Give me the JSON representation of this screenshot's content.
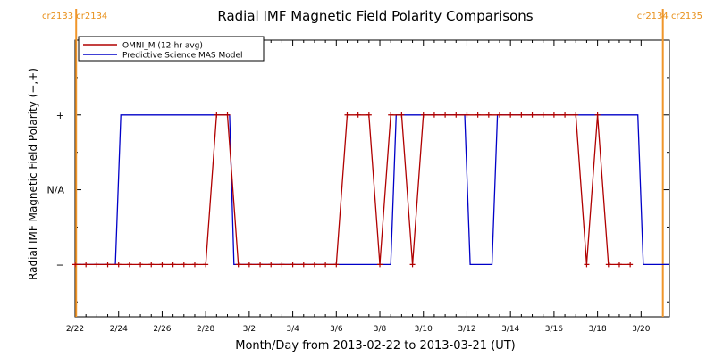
{
  "chart_data": {
    "type": "line",
    "title": "Radial IMF Magnetic Field Polarity Comparisons",
    "xlabel": "Month/Day from 2013-02-22 to 2013-03-21 (UT)",
    "ylabel": "Radial IMF Magnetic Field Polarity (−,+)",
    "xlim": [
      0,
      27.3
    ],
    "ylim": [
      -1.7,
      2.0
    ],
    "yticks": [
      {
        "value": 1,
        "label": "+"
      },
      {
        "value": 0,
        "label": "N/A"
      },
      {
        "value": -1,
        "label": "−"
      }
    ],
    "yminor": [
      -1.5,
      -0.5,
      0.5,
      1.5
    ],
    "xticks": [
      {
        "value": 0,
        "label": "2/22"
      },
      {
        "value": 2,
        "label": "2/24"
      },
      {
        "value": 4,
        "label": "2/26"
      },
      {
        "value": 6,
        "label": "2/28"
      },
      {
        "value": 8,
        "label": "3/2"
      },
      {
        "value": 10,
        "label": "3/4"
      },
      {
        "value": 12,
        "label": "3/6"
      },
      {
        "value": 14,
        "label": "3/8"
      },
      {
        "value": 16,
        "label": "3/10"
      },
      {
        "value": 18,
        "label": "3/12"
      },
      {
        "value": 20,
        "label": "3/14"
      },
      {
        "value": 22,
        "label": "3/16"
      },
      {
        "value": 24,
        "label": "3/18"
      },
      {
        "value": 26,
        "label": "3/20"
      }
    ],
    "legend": {
      "placement": "top-left"
    },
    "series": [
      {
        "name": "OMNI_M (12-hr avg)",
        "color": "#b00000",
        "markers": true,
        "points": [
          [
            0,
            -1
          ],
          [
            0.5,
            -1
          ],
          [
            1,
            -1
          ],
          [
            1.5,
            -1
          ],
          [
            2,
            -1
          ],
          [
            2.5,
            -1
          ],
          [
            3,
            -1
          ],
          [
            3.5,
            -1
          ],
          [
            4,
            -1
          ],
          [
            4.5,
            -1
          ],
          [
            5,
            -1
          ],
          [
            5.5,
            -1
          ],
          [
            6,
            -1
          ],
          [
            6.5,
            1
          ],
          [
            7,
            1
          ],
          [
            7.5,
            -1
          ],
          [
            8,
            -1
          ],
          [
            8.5,
            -1
          ],
          [
            9,
            -1
          ],
          [
            9.5,
            -1
          ],
          [
            10,
            -1
          ],
          [
            10.5,
            -1
          ],
          [
            11,
            -1
          ],
          [
            11.5,
            -1
          ],
          [
            12,
            -1
          ],
          [
            12.5,
            1
          ],
          [
            13,
            1
          ],
          [
            13.5,
            1
          ],
          [
            14,
            -1
          ],
          [
            14.5,
            1
          ],
          [
            15,
            1
          ],
          [
            15.5,
            -1
          ],
          [
            16,
            1
          ],
          [
            16.5,
            1
          ],
          [
            17,
            1
          ],
          [
            17.5,
            1
          ],
          [
            18,
            1
          ],
          [
            18.5,
            1
          ],
          [
            19,
            1
          ],
          [
            19.5,
            1
          ],
          [
            20,
            1
          ],
          [
            20.5,
            1
          ],
          [
            21,
            1
          ],
          [
            21.5,
            1
          ],
          [
            22,
            1
          ],
          [
            22.5,
            1
          ],
          [
            23,
            1
          ],
          [
            23.5,
            -1
          ],
          [
            24,
            1
          ],
          [
            24.5,
            -1
          ],
          [
            25,
            -1
          ],
          [
            25.5,
            -1
          ]
        ]
      },
      {
        "name": "Predictive Science MAS Model",
        "color": "#0000c8",
        "markers": false,
        "points": [
          [
            0,
            -1
          ],
          [
            1.85,
            -1
          ],
          [
            2.1,
            1
          ],
          [
            7.1,
            1
          ],
          [
            7.3,
            -1
          ],
          [
            14.5,
            -1
          ],
          [
            14.75,
            1
          ],
          [
            17.9,
            1
          ],
          [
            18.15,
            -1
          ],
          [
            19.15,
            -1
          ],
          [
            19.4,
            1
          ],
          [
            25.85,
            1
          ],
          [
            26.1,
            -1
          ],
          [
            27.3,
            -1
          ]
        ]
      }
    ],
    "carrington": [
      {
        "value": 0.05,
        "labels": [
          "cr2133",
          "cr2134"
        ],
        "side": "left"
      },
      {
        "value": 27.0,
        "labels": [
          "cr2134",
          "cr2135"
        ],
        "side": "right"
      }
    ],
    "carrington_color": "#f0962a"
  }
}
